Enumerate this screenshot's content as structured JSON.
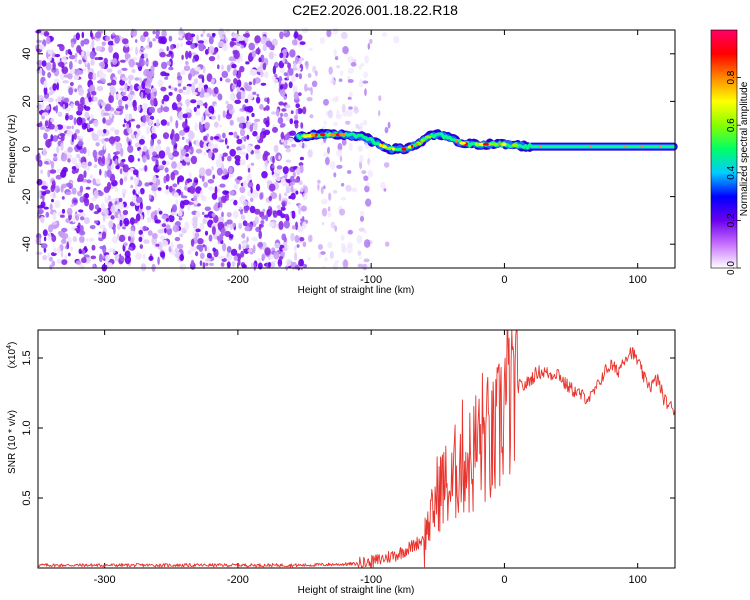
{
  "title": "C2E2.2026.001.18.22.R18",
  "chart_data": [
    {
      "type": "heatmap",
      "xlabel": "Height of straight line (km)",
      "ylabel": "Frequency (Hz)",
      "xlim": [
        -350,
        128
      ],
      "ylim": [
        -50,
        50
      ],
      "x_ticks": [
        -300,
        -200,
        -100,
        0,
        100
      ],
      "x_tick_labels": [
        "-300",
        "-200",
        "-100",
        "0",
        "100"
      ],
      "y_ticks": [
        -40,
        -20,
        0,
        20,
        40
      ],
      "y_tick_labels": [
        "-40",
        "-20",
        "0",
        "20",
        "40"
      ],
      "colorbar": {
        "label": "Normalized spectral amplitude",
        "range": [
          0,
          1
        ],
        "ticks": [
          0.0,
          0.2,
          0.4,
          0.6,
          0.8
        ],
        "tick_labels": [
          "0.0",
          "0.2",
          "0.4",
          "0.6",
          "0.8"
        ],
        "colors": [
          "#ffffff",
          "#c870ff",
          "#6a00ee",
          "#0000ff",
          "#00ccff",
          "#00ff66",
          "#88ff00",
          "#ffff00",
          "#ff8800",
          "#ff0000",
          "#ff0066"
        ]
      },
      "ridge": {
        "x": [
          -155,
          -140,
          -120,
          -105,
          -95,
          -85,
          -75,
          -65,
          -58,
          -50,
          -42,
          -35,
          -28,
          -20,
          -10,
          0,
          20,
          60,
          100,
          128
        ],
        "frequency": [
          5,
          6,
          6,
          5,
          2,
          0,
          0,
          2,
          5,
          6,
          5,
          3,
          2,
          2,
          2,
          2,
          1,
          1,
          1,
          1
        ]
      },
      "noise_region": {
        "x_from": -350,
        "x_to": -100,
        "dense_until": -150
      }
    },
    {
      "type": "line",
      "xlabel": "Height of straight line (km)",
      "ylabel": "SNR (10 * v/v)",
      "y_multiplier": "(x10",
      "y_multiplier_exponent": "4",
      "y_multiplier_close": ")",
      "xlim": [
        -350,
        128
      ],
      "ylim": [
        0,
        1.7
      ],
      "x_ticks": [
        -300,
        -200,
        -100,
        0,
        100
      ],
      "x_tick_labels": [
        "-300",
        "-200",
        "-100",
        "0",
        "100"
      ],
      "y_ticks": [
        0.5,
        1.0,
        1.5
      ],
      "y_tick_labels": [
        "0.5",
        "1.0",
        "1.5"
      ],
      "color": "#e8342c",
      "series": [
        {
          "x": [
            -350,
            -250,
            -150,
            -110,
            -100,
            -90,
            -80,
            -70,
            -62,
            -55,
            -50,
            -45,
            -40,
            -35,
            -30,
            -25,
            -20,
            -15,
            -10,
            -5,
            0,
            5,
            10,
            15,
            20,
            25,
            30,
            35,
            40,
            45,
            50,
            55,
            60,
            65,
            70,
            75,
            80,
            85,
            90,
            95,
            100,
            105,
            110,
            115,
            120,
            125,
            128
          ],
          "values": [
            0.02,
            0.02,
            0.02,
            0.03,
            0.04,
            0.07,
            0.1,
            0.15,
            0.2,
            0.35,
            0.55,
            0.6,
            0.55,
            0.75,
            0.8,
            0.75,
            0.9,
            0.95,
            0.85,
            0.95,
            1.2,
            1.25,
            1.3,
            1.3,
            1.35,
            1.4,
            1.4,
            1.38,
            1.4,
            1.32,
            1.28,
            1.25,
            1.22,
            1.22,
            1.3,
            1.4,
            1.45,
            1.4,
            1.5,
            1.55,
            1.48,
            1.35,
            1.3,
            1.35,
            1.2,
            1.15,
            1.13
          ]
        }
      ]
    }
  ]
}
